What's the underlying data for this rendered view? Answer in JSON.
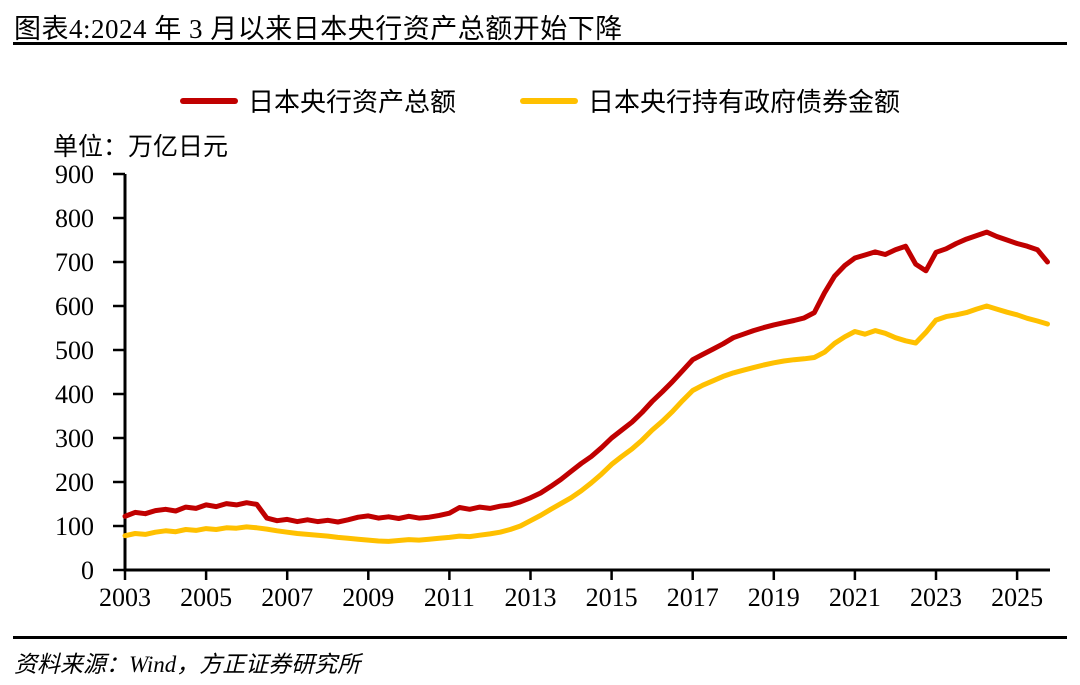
{
  "page": {
    "title": "图表4:2024 年 3 月以来日本央行资产总额开始下降",
    "source": "资料来源：Wind，方正证券研究所"
  },
  "chart_data": {
    "type": "line",
    "title": "2024 年 3 月以来日本央行资产总额开始下降",
    "unit_label": "单位：万亿日元",
    "unit": "万亿日元",
    "xlabel": "",
    "ylabel": "万亿日元",
    "ylim": [
      0,
      900
    ],
    "xlim": [
      2003,
      2025.9
    ],
    "y_ticks": [
      0,
      100,
      200,
      300,
      400,
      500,
      600,
      700,
      800,
      900
    ],
    "x_ticks": [
      2003,
      2005,
      2007,
      2009,
      2011,
      2013,
      2015,
      2017,
      2019,
      2021,
      2023,
      2025
    ],
    "grid": false,
    "legend_position": "top",
    "x": [
      2003,
      2003.25,
      2003.5,
      2003.75,
      2004,
      2004.25,
      2004.5,
      2004.75,
      2005,
      2005.25,
      2005.5,
      2005.75,
      2006,
      2006.25,
      2006.5,
      2006.75,
      2007,
      2007.25,
      2007.5,
      2007.75,
      2008,
      2008.25,
      2008.5,
      2008.75,
      2009,
      2009.25,
      2009.5,
      2009.75,
      2010,
      2010.25,
      2010.5,
      2010.75,
      2011,
      2011.25,
      2011.5,
      2011.75,
      2012,
      2012.25,
      2012.5,
      2012.75,
      2013,
      2013.25,
      2013.5,
      2013.75,
      2014,
      2014.25,
      2014.5,
      2014.75,
      2015,
      2015.25,
      2015.5,
      2015.75,
      2016,
      2016.25,
      2016.5,
      2016.75,
      2017,
      2017.25,
      2017.5,
      2017.75,
      2018,
      2018.25,
      2018.5,
      2018.75,
      2019,
      2019.25,
      2019.5,
      2019.75,
      2020,
      2020.25,
      2020.5,
      2020.75,
      2021,
      2021.25,
      2021.5,
      2021.75,
      2022,
      2022.25,
      2022.5,
      2022.75,
      2023,
      2023.25,
      2023.5,
      2023.75,
      2024,
      2024.25,
      2024.5,
      2024.75,
      2025,
      2025.25,
      2025.5,
      2025.75
    ],
    "series": [
      {
        "name": "日本央行资产总额",
        "color": "#C00000",
        "values": [
          122,
          131,
          128,
          135,
          138,
          134,
          143,
          140,
          148,
          144,
          151,
          148,
          153,
          149,
          118,
          112,
          115,
          110,
          114,
          110,
          113,
          109,
          114,
          120,
          123,
          118,
          121,
          117,
          122,
          118,
          120,
          124,
          129,
          142,
          138,
          143,
          140,
          145,
          148,
          155,
          164,
          175,
          190,
          206,
          224,
          242,
          258,
          278,
          300,
          318,
          336,
          358,
          383,
          405,
          428,
          453,
          478,
          490,
          502,
          514,
          528,
          536,
          544,
          551,
          557,
          562,
          567,
          573,
          585,
          630,
          668,
          692,
          709,
          716,
          723,
          717,
          728,
          736,
          695,
          680,
          722,
          730,
          742,
          752,
          760,
          768,
          758,
          750,
          742,
          736,
          728,
          700
        ]
      },
      {
        "name": "日本央行持有政府债券金额",
        "color": "#FFC000",
        "values": [
          78,
          83,
          81,
          86,
          89,
          87,
          92,
          90,
          94,
          92,
          96,
          95,
          98,
          96,
          93,
          89,
          86,
          83,
          81,
          79,
          77,
          74,
          72,
          70,
          68,
          66,
          65,
          67,
          69,
          68,
          70,
          72,
          74,
          77,
          76,
          79,
          82,
          86,
          92,
          100,
          112,
          124,
          138,
          151,
          164,
          180,
          198,
          218,
          240,
          258,
          275,
          295,
          318,
          338,
          360,
          385,
          408,
          420,
          430,
          440,
          448,
          454,
          460,
          466,
          471,
          475,
          478,
          480,
          483,
          495,
          515,
          530,
          542,
          536,
          544,
          538,
          528,
          521,
          516,
          540,
          568,
          576,
          580,
          585,
          593,
          600,
          593,
          586,
          580,
          572,
          566,
          559
        ]
      }
    ]
  }
}
